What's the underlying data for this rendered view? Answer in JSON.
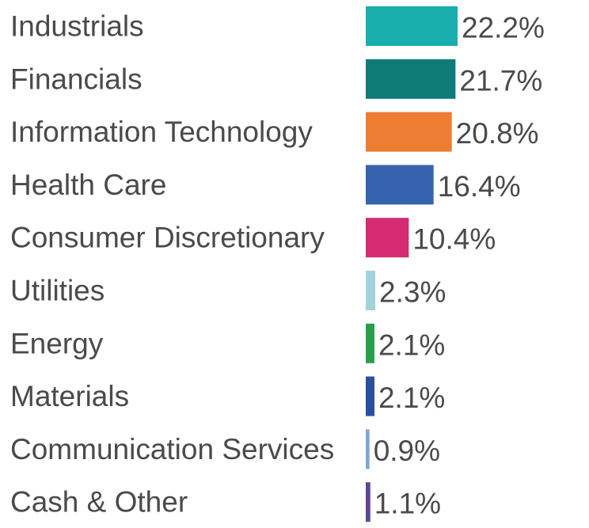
{
  "chart_data": {
    "type": "bar",
    "orientation": "horizontal",
    "categories": [
      "Industrials",
      "Financials",
      "Information Technology",
      "Health Care",
      "Consumer Discretionary",
      "Utilities",
      "Energy",
      "Materials",
      "Communication Services",
      "Cash & Other"
    ],
    "values": [
      22.2,
      21.7,
      20.8,
      16.4,
      10.4,
      2.3,
      2.1,
      2.1,
      0.9,
      1.1
    ],
    "value_labels": [
      "22.2%",
      "21.7%",
      "20.8%",
      "16.4%",
      "10.4%",
      "2.3%",
      "2.1%",
      "2.1%",
      "0.9%",
      "1.1%"
    ],
    "colors": [
      "#1aaeae",
      "#0f7b78",
      "#ec7d33",
      "#3763ae",
      "#d52b72",
      "#a2d3dc",
      "#2a9d4b",
      "#2a4f9c",
      "#80a5d4",
      "#5f4597"
    ],
    "grid": false,
    "legend": "none"
  }
}
